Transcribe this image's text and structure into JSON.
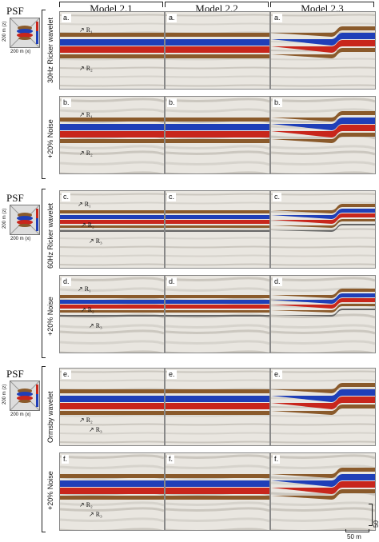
{
  "columns": [
    "Model 2.1",
    "Model 2.2",
    "Model 2.3"
  ],
  "psf": {
    "title": "PSF",
    "z_label": "200 m (z)",
    "x_label": "200 m (x)"
  },
  "groups": [
    {
      "wavelet": "30Hz Ricker wavelet",
      "noise": "+20% Noise",
      "labels": [
        "a.",
        "b."
      ],
      "reflectors": [
        "R₁",
        "R₂"
      ]
    },
    {
      "wavelet": "60Hz Ricker wavelet",
      "noise": "+20% Noise",
      "labels": [
        "c.",
        "d."
      ],
      "reflectors": [
        "R₁",
        "R₂",
        "R₃"
      ]
    },
    {
      "wavelet": "Ormsby wavelet",
      "noise": "+20% Noise",
      "labels": [
        "e.",
        "f."
      ],
      "reflectors": [
        "R₂",
        "R₃"
      ]
    }
  ],
  "scale": {
    "vertical": "50 m",
    "horizontal": "50 m"
  },
  "colors": {
    "blue": "#1f3fb8",
    "red": "#c8261c",
    "brown": "#8a5a2b",
    "grey": "#b9b6b2"
  }
}
